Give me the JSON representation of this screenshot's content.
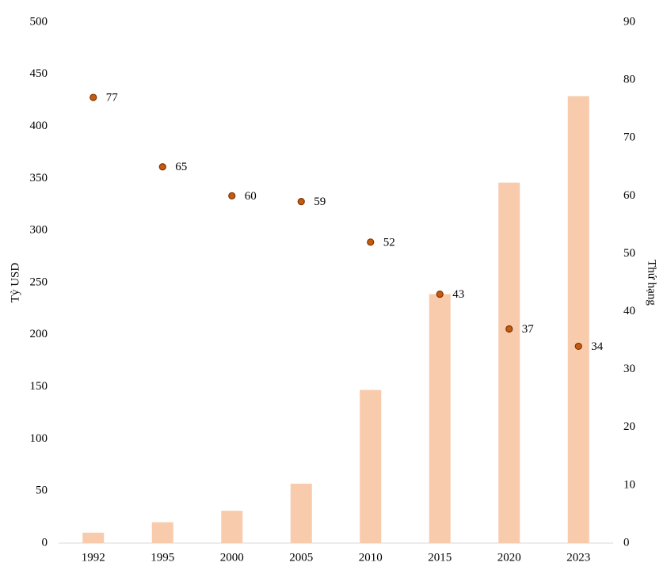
{
  "chart_data": {
    "type": "bar",
    "categories": [
      "1992",
      "1995",
      "2000",
      "2005",
      "2010",
      "2015",
      "2020",
      "2023"
    ],
    "series": [
      {
        "type": "bar",
        "color": "#f8cbad",
        "values": [
          10,
          20,
          31,
          57,
          147,
          239,
          346,
          429
        ]
      },
      {
        "type": "dot",
        "color": "#c55a11",
        "axis": "y2",
        "values": [
          77,
          65,
          60,
          59,
          52,
          43,
          37,
          34
        ]
      }
    ],
    "ylabel": "Tỷ USD",
    "y2label": "Thứ hạng",
    "ylim": [
      0,
      500
    ],
    "yticks": [
      0,
      50,
      100,
      150,
      200,
      250,
      300,
      350,
      400,
      450,
      500
    ],
    "y2lim": [
      0,
      90
    ],
    "y2ticks": [
      0,
      10,
      20,
      30,
      40,
      50,
      60,
      70,
      80,
      90
    ],
    "grid": false
  }
}
